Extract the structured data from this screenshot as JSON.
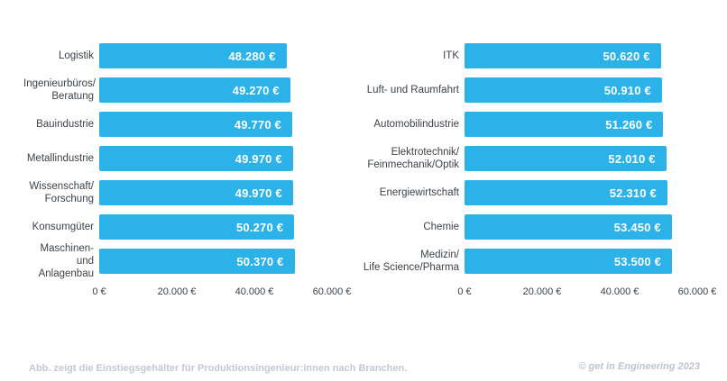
{
  "accent_color": "#2bb2e8",
  "label_color": "#3c4248",
  "footer_color": "#c2c9d2",
  "chart_data": [
    {
      "type": "bar",
      "orientation": "horizontal",
      "title": "",
      "xlabel": "",
      "ylabel": "",
      "categories": [
        "Logistik",
        "Ingenieurbüros/\nBeratung",
        "Bauindustrie",
        "Metallindustrie",
        "Wissenschaft/\nForschung",
        "Konsumgüter",
        "Maschinen- und\nAnlagenbau"
      ],
      "values": [
        48280,
        49270,
        49770,
        49970,
        49970,
        50270,
        50370
      ],
      "value_labels": [
        "48.280 €",
        "49.270 €",
        "49.770 €",
        "49.970 €",
        "49.970 €",
        "50.270 €",
        "50.370 €"
      ],
      "xticks": [
        "0 €",
        "20.000 €",
        "40.000 €",
        "60.000 €"
      ],
      "xtick_values": [
        0,
        20000,
        40000,
        60000
      ],
      "xlim": [
        0,
        60000
      ],
      "grid": false,
      "legend": false
    },
    {
      "type": "bar",
      "orientation": "horizontal",
      "title": "",
      "xlabel": "",
      "ylabel": "",
      "categories": [
        "ITK",
        "Luft- und Raumfahrt",
        "Automobilindustrie",
        "Elektrotechnik/\nFeinmechanik/Optik",
        "Energiewirtschaft",
        "Chemie",
        "Medizin/\nLife Science/Pharma"
      ],
      "values": [
        50620,
        50910,
        51260,
        52010,
        52310,
        53450,
        53500
      ],
      "value_labels": [
        "50.620 €",
        "50.910 €",
        "51.260 €",
        "52.010 €",
        "52.310 €",
        "53.450 €",
        "53.500 €"
      ],
      "xticks": [
        "0 €",
        "20.000 €",
        "40.000 €",
        "60.000 €"
      ],
      "xtick_values": [
        0,
        20000,
        40000,
        60000
      ],
      "xlim": [
        0,
        60000
      ],
      "grid": false,
      "legend": false
    }
  ],
  "footer": {
    "caption": "Abb. zeigt die Einstiegsgehälter für Produktionsingenieur:innen nach Branchen.",
    "credit": "© get in Engineering 2023"
  }
}
